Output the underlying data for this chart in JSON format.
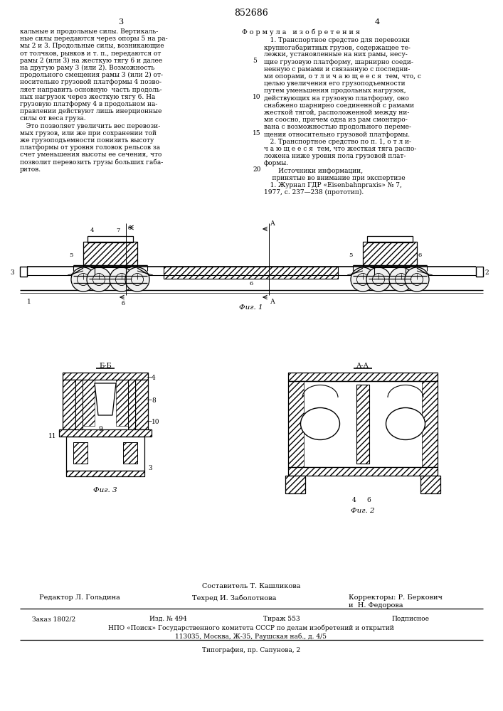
{
  "patent_number": "852686",
  "page_left": "3",
  "page_right": "4",
  "bg_color": "#ffffff",
  "text_color": "#000000",
  "left_col_text": [
    "кальные и продольные силы. Вертикаль-",
    "ные силы передаются через опоры 5 на ра-",
    "мы 2 и 3. Продольные силы, возникающие",
    "от толчков, рывков и т. п., передаются от",
    "рамы 2 (или 3) на жесткую тягу 6 и далее",
    "на другую раму 3 (или 2). Возможность",
    "продольного смещения рамы 3 (или 2) от-",
    "носительно грузовой платформы 4 позво-",
    "ляет направить основную  часть продоль-",
    "ных нагрузок через жесткую тягу 6. На",
    "грузовую платформу 4 в продольном на-",
    "правлении действуют лишь инерционные",
    "силы от веса груза.",
    "   Это позволяет увеличить вес перевози-",
    "мых грузов, или же при сохранении той",
    "же грузоподъемности понизить высоту",
    "платформы от уровня головок рельсов за",
    "счет уменьшения высоты ее сечения, что",
    "позволит перевозить грузы больших габа-",
    "ритов."
  ],
  "right_col_header": "Ф о р м у л а   и з о б р е т е н и я",
  "right_col_text": [
    "   1. Транспортное средство для перевозки",
    "крупногабаритных грузов, содержащее те-",
    "лежки, установленные на них рамы, несу-",
    "щие грузовую платформу, шарнирно соеди-",
    "ненную с рамами и связанную с последни-",
    "ми опорами, о т л и ч а ю щ е е с я  тем, что, с",
    "целью увеличения его грузоподъемности",
    "путем уменьшения продольных нагрузок,",
    "действующих на грузовую платформу, оно",
    "снабжено шарнирно соединенной с рамами",
    "жесткой тягой, расположенной между ни-",
    "ми соосно, причем одна из рам смонтиро-",
    "вана с возможностью продольного переме-",
    "щения относительно грузовой платформы.",
    "   2. Транспортное средство по п. 1, о т л и-",
    "ч а ю щ е е с я  тем, что жесткая тяга распо-",
    "ложена ниже уровня пола грузовой плат-",
    "формы.",
    "       Источники информации,",
    "    принятые во внимание при экспертизе",
    "   1. Журнал ГДР «Eisenbahnpraxis» № 7,",
    "1977, с. 237—238 (прототип)."
  ],
  "fig1_label": "Фиг. 1",
  "fig2_label": "Фиг. 2",
  "fig3_label": "Фиг. 3",
  "footer_line1": "Составитель Т. Кашликова",
  "footer_editor": "Редактор Л. Гольдина",
  "footer_techred": "Техред И. Заболотнова",
  "footer_correctors": "Корректоры: Р. Беркович",
  "footer_correctors2": "и  Н. Федорова",
  "footer_order": "Заказ 1802/2",
  "footer_izd": "Изд. № 494",
  "footer_tirazh": "Тираж 553",
  "footer_podpisnoe": "Подписное",
  "footer_npo": "НПО «Поиск» Государственного комитета СССР по делам изобретений и открытий",
  "footer_address": "113035, Москва, Ж-35, Раушская наб., д. 4/5",
  "footer_typography": "Типография, пр. Сапунова, 2"
}
